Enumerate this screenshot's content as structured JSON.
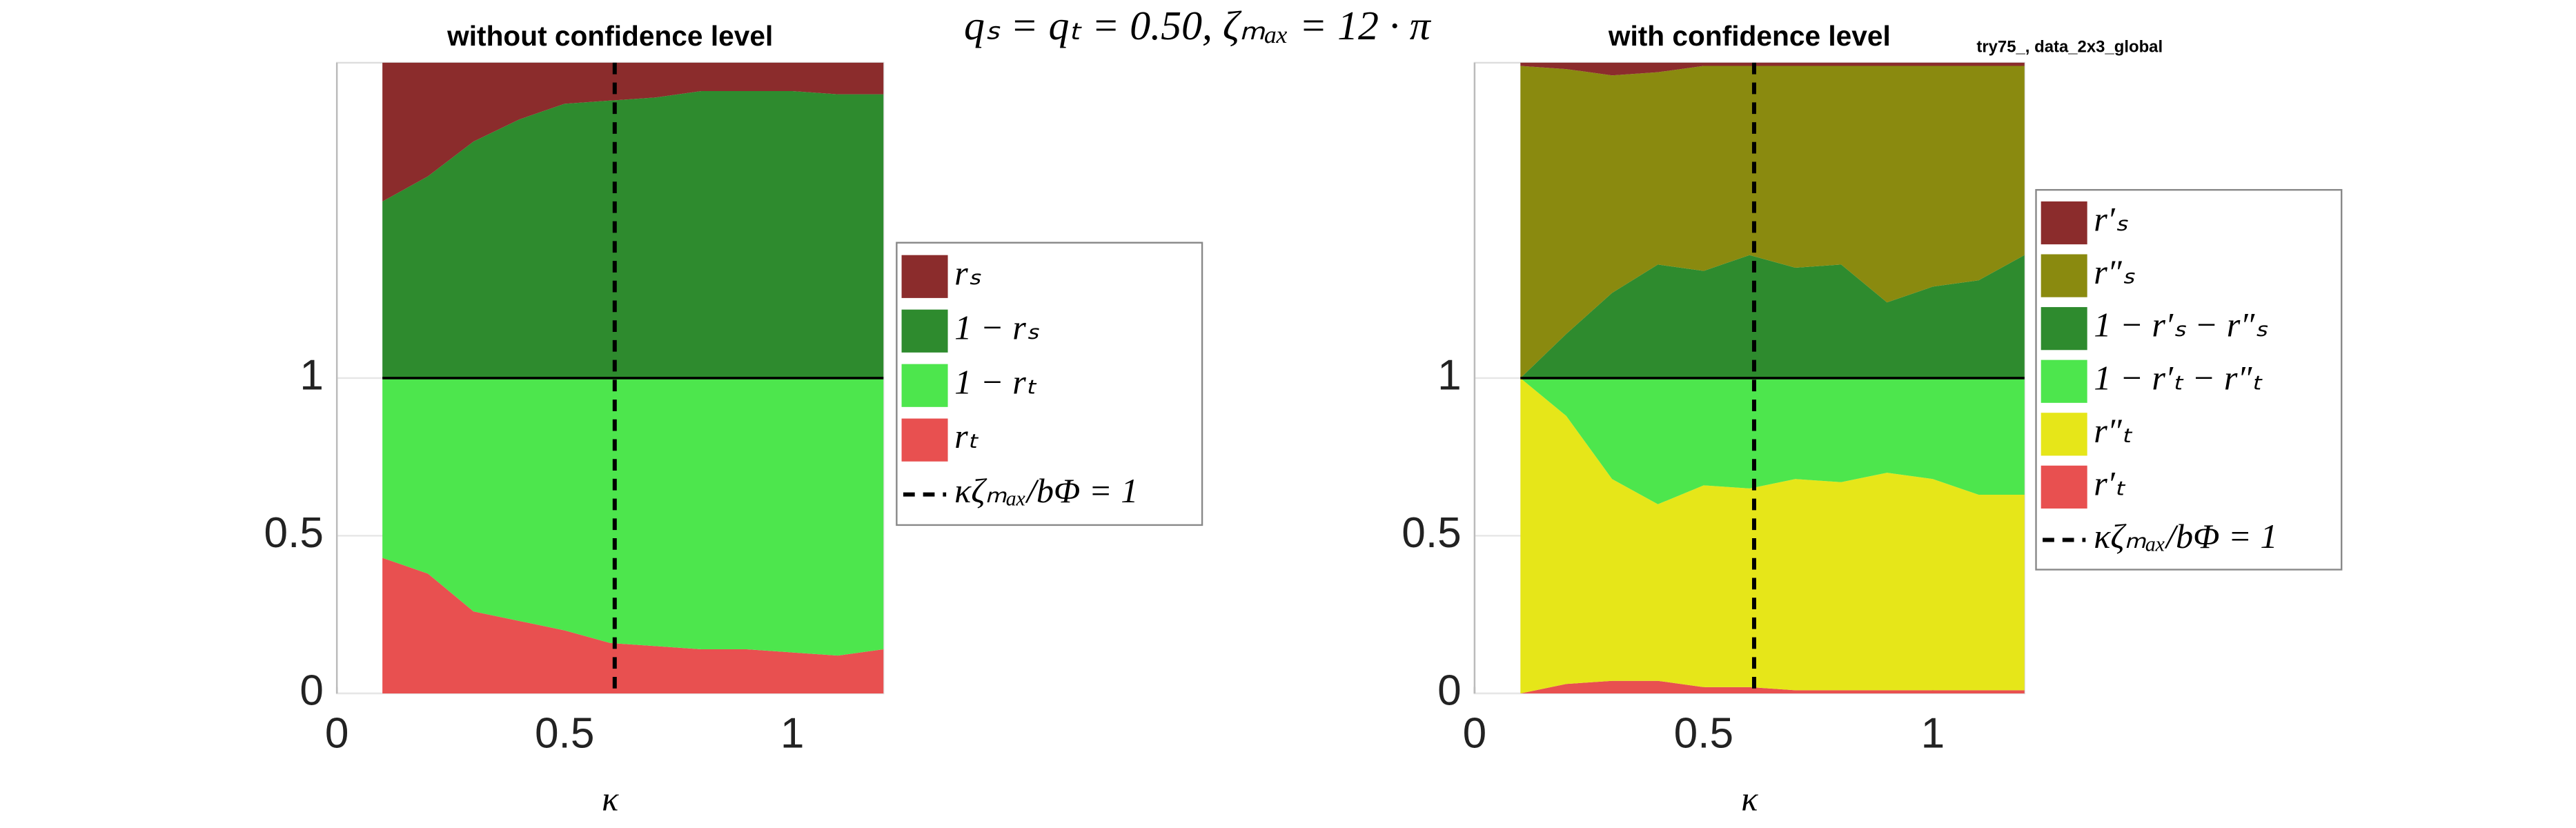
{
  "suptitle": "qₛ = qₜ = 0.50,  ζₘₐₓ = 12 · π",
  "note": "try75_, data_2x3_global",
  "chart_data": [
    {
      "type": "stacked_area",
      "title": "without confidence level",
      "xlabel": "κ",
      "x": [
        0.1,
        0.2,
        0.3,
        0.4,
        0.5,
        0.6,
        0.7,
        0.8,
        0.9,
        1.0,
        1.1,
        1.2
      ],
      "series": [
        {
          "name": "rₜ",
          "color": "#e85050",
          "values": [
            0.43,
            0.38,
            0.26,
            0.23,
            0.2,
            0.16,
            0.15,
            0.14,
            0.14,
            0.13,
            0.12,
            0.14
          ]
        },
        {
          "name": "1 − rₜ",
          "color": "#4de64d",
          "values": [
            0.57,
            0.62,
            0.74,
            0.77,
            0.8,
            0.84,
            0.85,
            0.86,
            0.86,
            0.87,
            0.88,
            0.86
          ]
        },
        {
          "name": "1 − rₛ",
          "color": "#2e8b2e",
          "values": [
            0.56,
            0.64,
            0.75,
            0.82,
            0.87,
            0.88,
            0.89,
            0.91,
            0.91,
            0.91,
            0.9,
            0.9
          ]
        },
        {
          "name": "rₛ",
          "color": "#8b2c2c",
          "values": [
            0.44,
            0.36,
            0.25,
            0.18,
            0.13,
            0.12,
            0.11,
            0.09,
            0.09,
            0.09,
            0.1,
            0.1
          ]
        }
      ],
      "vline": {
        "name": "κζₘₐₓ/bΦ = 1",
        "x": 0.61
      },
      "hline": 1,
      "xlim": [
        0,
        1.2
      ],
      "ylim": [
        0,
        2
      ],
      "xticks": [
        0,
        0.5,
        1
      ],
      "yticks": [
        0,
        0.5,
        1
      ],
      "grid": true,
      "legend": "right"
    },
    {
      "type": "stacked_area",
      "title": "with confidence level",
      "xlabel": "κ",
      "x": [
        0.1,
        0.2,
        0.3,
        0.4,
        0.5,
        0.6,
        0.7,
        0.8,
        0.9,
        1.0,
        1.1,
        1.2
      ],
      "series": [
        {
          "name": "r′ₜ",
          "color": "#e85050",
          "values": [
            0,
            0.03,
            0.04,
            0.04,
            0.02,
            0.02,
            0.01,
            0.01,
            0.01,
            0.01,
            0.01,
            0.01
          ]
        },
        {
          "name": "r″ₜ",
          "color": "#e6e619",
          "values": [
            1,
            0.85,
            0.64,
            0.56,
            0.64,
            0.63,
            0.67,
            0.66,
            0.69,
            0.67,
            0.62,
            0.62
          ]
        },
        {
          "name": "1 − r′ₜ − r″ₜ",
          "color": "#4de64d",
          "values": [
            0,
            0.12,
            0.32,
            0.4,
            0.34,
            0.35,
            0.32,
            0.33,
            0.3,
            0.32,
            0.37,
            0.37
          ]
        },
        {
          "name": "1 − r′ₛ − r″ₛ",
          "color": "#2e8b2e",
          "values": [
            0,
            0.14,
            0.27,
            0.36,
            0.34,
            0.39,
            0.35,
            0.36,
            0.24,
            0.29,
            0.31,
            0.39
          ]
        },
        {
          "name": "r″ₛ",
          "color": "#8a8a0f",
          "values": [
            0.99,
            0.84,
            0.69,
            0.61,
            0.65,
            0.6,
            0.64,
            0.63,
            0.75,
            0.7,
            0.68,
            0.6
          ]
        },
        {
          "name": "r′ₛ",
          "color": "#8b2c2c",
          "values": [
            0.01,
            0.02,
            0.04,
            0.03,
            0.01,
            0.01,
            0.01,
            0.01,
            0.01,
            0.01,
            0.01,
            0.01
          ]
        }
      ],
      "vline": {
        "name": "κζₘₐₓ/bΦ = 1",
        "x": 0.61
      },
      "hline": 1,
      "xlim": [
        0,
        1.2
      ],
      "ylim": [
        0,
        2
      ],
      "xticks": [
        0,
        0.5,
        1
      ],
      "yticks": [
        0,
        0.5,
        1
      ],
      "grid": true,
      "legend": "right"
    }
  ]
}
